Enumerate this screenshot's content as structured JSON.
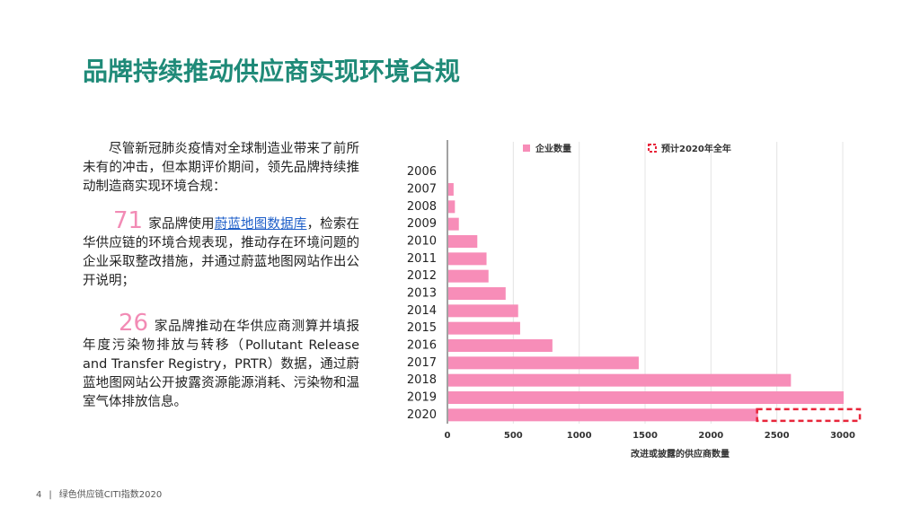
{
  "header": {
    "title": "品牌持续推动供应商实现环境合规"
  },
  "body": {
    "intro": "尽管新冠肺炎疫情对全球制造业带来了前所未有的冲击，但本期评价期间，领先品牌持续推动制造商实现环境合规：",
    "point1": {
      "number": "71",
      "text_before": "家品牌使用",
      "link": "蔚蓝地图数据库",
      "text_after": "，检索在华供应链的环境合规表现，推动存在环境问题的企业采取整改措施，并通过蔚蓝地图网站作出公开说明；"
    },
    "point2": {
      "number": "26",
      "text": "家品牌推动在华供应商测算并填报年度污染物排放与转移（Pollutant Release and Transfer Registry，PRTR）数据，通过蔚蓝地图网站公开披露资源能源消耗、污染物和温室气体排放信息。"
    }
  },
  "footer": {
    "page": "4",
    "text": "绿色供应链CITI指数2020"
  },
  "chart_data": {
    "type": "hbar",
    "x_label": "改进或披露的供应商数量",
    "categories": [
      "2006",
      "2007",
      "2008",
      "2009",
      "2010",
      "2011",
      "2012",
      "2013",
      "2014",
      "2015",
      "2016",
      "2017",
      "2018",
      "2019",
      "2020"
    ],
    "series": [
      {
        "name": "企业数量",
        "color": "#f78db8",
        "values": [
          null,
          40,
          50,
          80,
          220,
          290,
          305,
          435,
          530,
          545,
          790,
          1445,
          2600,
          3000,
          2350
        ]
      },
      {
        "name": "预计2020年全年",
        "color": "#e8253a",
        "style": "dashed",
        "values": [
          null,
          null,
          null,
          null,
          null,
          null,
          null,
          null,
          null,
          null,
          null,
          null,
          null,
          null,
          3130
        ]
      }
    ],
    "xlim": [
      0,
      3150
    ],
    "xticks": [
      0,
      500,
      1000,
      1500,
      2000,
      2500,
      3000
    ],
    "grid": true,
    "legend": "top"
  }
}
